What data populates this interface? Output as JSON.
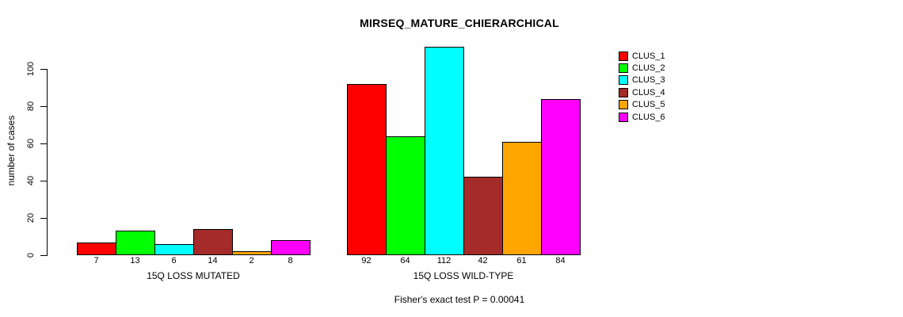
{
  "chart_data": {
    "type": "bar",
    "title": "MIRSEQ_MATURE_CHIERARCHICAL",
    "ylabel": "number of cases",
    "xlabel": "",
    "caption": "Fisher's exact test P = 0.00041",
    "ylim": [
      0,
      112
    ],
    "yticks": [
      0,
      20,
      40,
      60,
      80,
      100
    ],
    "grid": false,
    "legend_position": "top-right",
    "categories": [
      "15Q LOSS MUTATED",
      "15Q LOSS WILD-TYPE"
    ],
    "series": [
      {
        "name": "CLUS_1",
        "color": "#FF0000",
        "values": [
          7,
          92
        ]
      },
      {
        "name": "CLUS_2",
        "color": "#00FF00",
        "values": [
          13,
          64
        ]
      },
      {
        "name": "CLUS_3",
        "color": "#00FFFF",
        "values": [
          6,
          112
        ]
      },
      {
        "name": "CLUS_4",
        "color": "#A52A2A",
        "values": [
          14,
          42
        ]
      },
      {
        "name": "CLUS_5",
        "color": "#FFA500",
        "values": [
          2,
          61
        ]
      },
      {
        "name": "CLUS_6",
        "color": "#FF00FF",
        "values": [
          8,
          84
        ]
      }
    ],
    "bar_value_labels_shown": true,
    "background_color": "#FFFFFF",
    "bar_border_color": "#000000"
  }
}
